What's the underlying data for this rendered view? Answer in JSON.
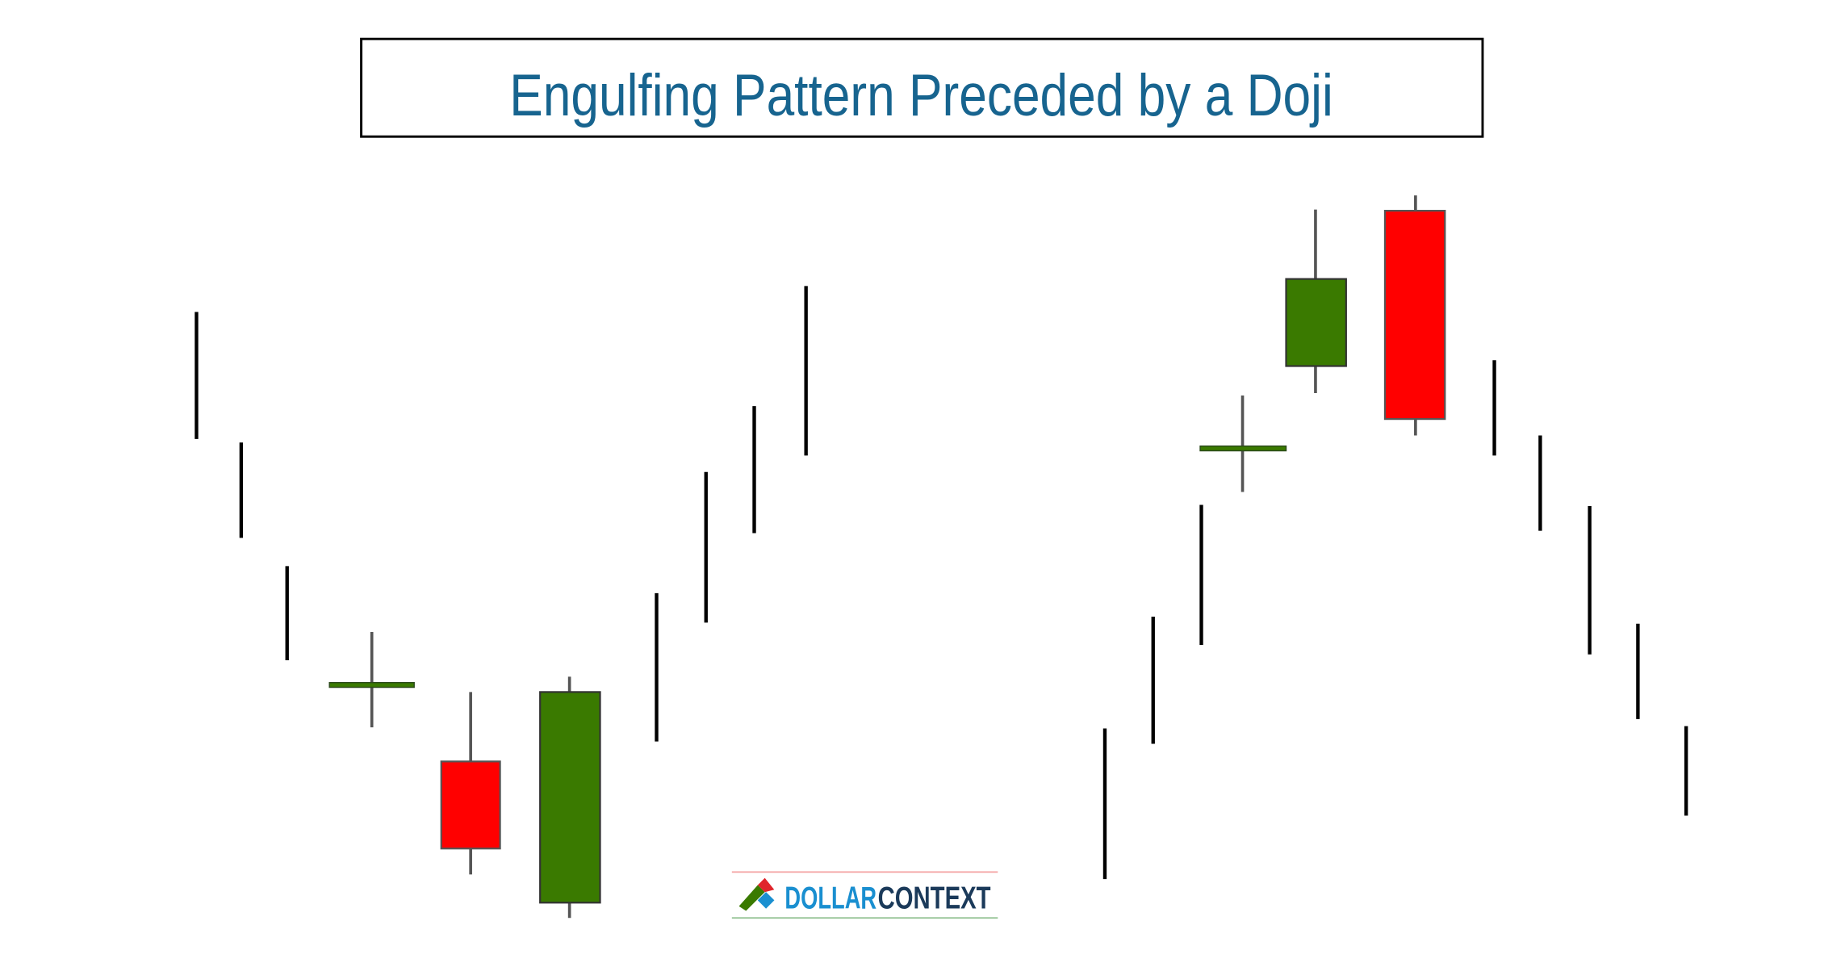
{
  "title": "Engulfing Pattern Preceded by a Doji",
  "logo": {
    "first": "DOLLAR",
    "second": "CONTEXT"
  }
}
